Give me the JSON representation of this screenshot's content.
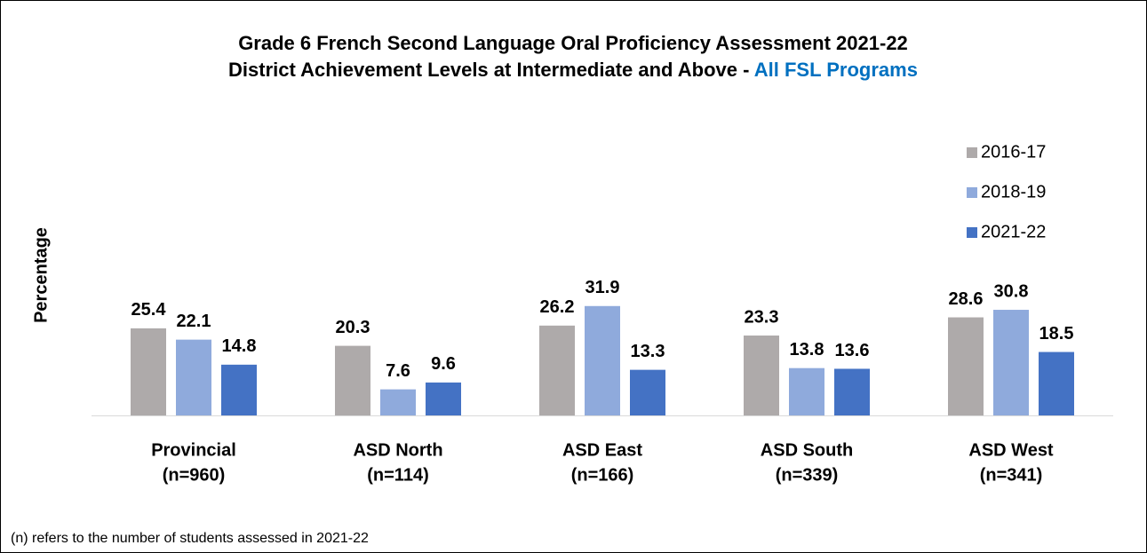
{
  "chart_data": {
    "type": "bar",
    "title": [
      "Grade 6 French Second Language Oral Proficiency Assessment 2021-22",
      "District Achievement Levels at Intermediate and Above -",
      "All FSL Programs"
    ],
    "title_highlight_color": "#0070c0",
    "ylabel": "Percentage",
    "categories": [
      [
        "Provincial",
        "(n=960)"
      ],
      [
        "ASD North",
        "(n=114)"
      ],
      [
        "ASD East",
        "(n=166)"
      ],
      [
        "ASD South",
        "(n=339)"
      ],
      [
        "ASD West",
        "(n=341)"
      ]
    ],
    "series": [
      {
        "name": "2016-17",
        "color": "#aeaaaa",
        "values": [
          25.4,
          20.3,
          26.2,
          23.3,
          28.6
        ]
      },
      {
        "name": "2018-19",
        "color": "#8faadc",
        "values": [
          22.1,
          7.6,
          31.9,
          13.8,
          30.8
        ]
      },
      {
        "name": "2021-22",
        "color": "#4472c4",
        "values": [
          14.8,
          9.6,
          13.3,
          13.6,
          18.5
        ]
      }
    ],
    "ylim": [
      0,
      40
    ],
    "legend": "right",
    "footnote": "(n) refers to the number of students assessed in 2021-22"
  }
}
